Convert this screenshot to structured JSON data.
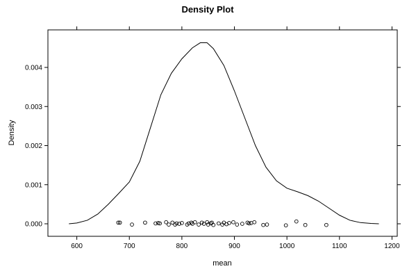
{
  "chart_data": {
    "type": "line",
    "title": "Density Plot",
    "xlabel": "mean",
    "ylabel": "Density",
    "xlim": [
      545,
      1210
    ],
    "ylim": [
      -0.00032,
      0.00496
    ],
    "x_ticks": [
      600,
      700,
      800,
      900,
      1000,
      1100,
      1200
    ],
    "y_ticks": [
      0.0,
      0.001,
      0.002,
      0.003,
      0.004
    ],
    "y_tick_labels": [
      "0.000",
      "0.001",
      "0.002",
      "0.003",
      "0.004"
    ],
    "grid": false,
    "series": [
      {
        "type": "line",
        "x": [
          585,
          600,
          620,
          640,
          660,
          680,
          700,
          720,
          740,
          760,
          780,
          800,
          820,
          835,
          848,
          860,
          880,
          900,
          920,
          940,
          960,
          980,
          1000,
          1020,
          1040,
          1060,
          1080,
          1100,
          1120,
          1140,
          1160,
          1175
        ],
        "y": [
          0.0,
          2e-05,
          9e-05,
          0.00025,
          0.0005,
          0.00078,
          0.00107,
          0.0016,
          0.00245,
          0.0033,
          0.00385,
          0.00422,
          0.0045,
          0.00463,
          0.00463,
          0.00448,
          0.00405,
          0.0034,
          0.0027,
          0.002,
          0.00145,
          0.0011,
          0.00091,
          0.00082,
          0.00072,
          0.00058,
          0.0004,
          0.00022,
          9e-05,
          3e-05,
          1e-05,
          0.0
        ]
      },
      {
        "type": "rug-points",
        "x": [
          679,
          682,
          705,
          730,
          750,
          755,
          758,
          770,
          775,
          782,
          787,
          790,
          795,
          800,
          810,
          813,
          818,
          820,
          825,
          832,
          838,
          842,
          848,
          850,
          855,
          857,
          860,
          870,
          877,
          880,
          885,
          890,
          898,
          905,
          915,
          925,
          928,
          932,
          938,
          955,
          962,
          998,
          1018,
          1035,
          1075
        ],
        "y": [
          3e-05,
          3e-05,
          -2e-05,
          3e-05,
          1e-05,
          2e-05,
          1e-05,
          4e-05,
          -2e-05,
          3e-05,
          -2e-05,
          1e-05,
          0.0,
          2e-05,
          -2e-05,
          1e-05,
          3e-05,
          0.0,
          4e-05,
          -2e-05,
          3e-05,
          0.0,
          4e-05,
          -2e-05,
          1e-05,
          3e-05,
          -3e-05,
          1e-05,
          -2e-05,
          3e-05,
          -1e-05,
          2e-05,
          4e-05,
          -2e-05,
          0.0,
          3e-05,
          1e-05,
          2e-05,
          4e-05,
          -3e-05,
          -2e-05,
          -4e-05,
          6e-05,
          -3e-05,
          -3e-05
        ]
      }
    ]
  }
}
